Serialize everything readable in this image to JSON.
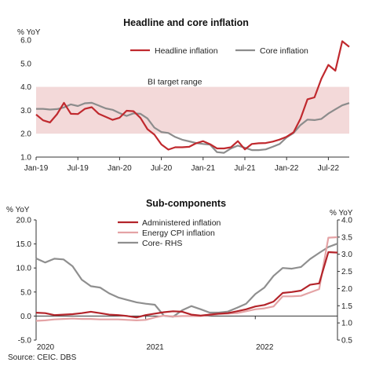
{
  "chart_data": [
    {
      "type": "line",
      "title": "Headline and core inflation",
      "ylabel": "% YoY",
      "ylim": [
        1.0,
        6.0
      ],
      "yticks": [
        "1.0",
        "2.0",
        "3.0",
        "4.0",
        "5.0",
        "6.0"
      ],
      "xlim": [
        0,
        45
      ],
      "xticks": [
        {
          "label": "Jan-19",
          "x": 0
        },
        {
          "label": "Jul-19",
          "x": 6
        },
        {
          "label": "Jan-20",
          "x": 12
        },
        {
          "label": "Jul-20",
          "x": 18
        },
        {
          "label": "Jan-21",
          "x": 24
        },
        {
          "label": "Jul-21",
          "x": 30
        },
        {
          "label": "Jan-22",
          "x": 36
        },
        {
          "label": "Jul-22",
          "x": 42
        }
      ],
      "band": {
        "label": "BI target range",
        "from": 2.0,
        "to": 4.0,
        "color": "#f3d9d9"
      },
      "legend": "top-right",
      "series": [
        {
          "name": "Headline inflation",
          "color": "#c0292e",
          "x": [
            0,
            1,
            2,
            3,
            4,
            5,
            6,
            7,
            8,
            9,
            10,
            11,
            12,
            13,
            14,
            15,
            16,
            17,
            18,
            19,
            20,
            21,
            22,
            23,
            24,
            25,
            26,
            27,
            28,
            29,
            30,
            31,
            32,
            33,
            34,
            35,
            36,
            37,
            38,
            39,
            40,
            41,
            42,
            43,
            44,
            45
          ],
          "values": [
            2.82,
            2.57,
            2.48,
            2.83,
            3.32,
            2.85,
            2.84,
            3.06,
            3.13,
            2.85,
            2.72,
            2.59,
            2.68,
            2.98,
            2.96,
            2.67,
            2.19,
            1.96,
            1.54,
            1.32,
            1.42,
            1.42,
            1.44,
            1.59,
            1.68,
            1.55,
            1.37,
            1.37,
            1.42,
            1.68,
            1.33,
            1.56,
            1.59,
            1.6,
            1.66,
            1.75,
            1.87,
            2.06,
            2.64,
            3.47,
            3.55,
            4.35,
            4.94,
            4.69,
            5.95,
            5.71
          ]
        },
        {
          "name": "Core inflation",
          "color": "#8c8c8c",
          "x": [
            0,
            1,
            2,
            3,
            4,
            5,
            6,
            7,
            8,
            9,
            10,
            11,
            12,
            13,
            14,
            15,
            16,
            17,
            18,
            19,
            20,
            21,
            22,
            23,
            24,
            25,
            26,
            27,
            28,
            29,
            30,
            31,
            32,
            33,
            34,
            35,
            36,
            37,
            38,
            39,
            40,
            41,
            42,
            43,
            44,
            45
          ],
          "values": [
            3.06,
            3.06,
            3.03,
            3.05,
            3.12,
            3.25,
            3.18,
            3.3,
            3.32,
            3.2,
            3.08,
            3.02,
            2.88,
            2.76,
            2.87,
            2.85,
            2.65,
            2.26,
            2.07,
            2.03,
            1.86,
            1.74,
            1.67,
            1.6,
            1.56,
            1.53,
            1.21,
            1.18,
            1.37,
            1.49,
            1.4,
            1.3,
            1.3,
            1.33,
            1.44,
            1.56,
            1.84,
            2.03,
            2.37,
            2.6,
            2.58,
            2.63,
            2.86,
            3.04,
            3.21,
            3.31
          ]
        }
      ]
    },
    {
      "type": "line",
      "title": "Sub-components",
      "ylabel": "% YoY",
      "ylabel_right": "% YoY",
      "ylim": [
        -5.0,
        20.0
      ],
      "ylim_right": [
        0.5,
        4.0
      ],
      "yticks": [
        "-5.0",
        "0.0",
        "5.0",
        "10.0",
        "15.0",
        "20.0"
      ],
      "yticks_right": [
        "0.5",
        "1.0",
        "1.5",
        "2.0",
        "2.5",
        "3.0",
        "3.5",
        "4.0"
      ],
      "xlim": [
        0,
        33
      ],
      "xticks": [
        {
          "label": "2020",
          "x": 0
        },
        {
          "label": "2021",
          "x": 12
        },
        {
          "label": "2022",
          "x": 24
        }
      ],
      "legend": "top-center",
      "series": [
        {
          "name": "Administered inflation",
          "color": "#b3242a",
          "axis": "left",
          "x": [
            0,
            1,
            2,
            3,
            4,
            5,
            6,
            7,
            8,
            9,
            10,
            11,
            12,
            13,
            14,
            15,
            16,
            17,
            18,
            19,
            20,
            21,
            22,
            23,
            24,
            25,
            26,
            27,
            28,
            29,
            30,
            31,
            32,
            33
          ],
          "values": [
            0.7,
            0.6,
            0.2,
            0.3,
            0.4,
            0.6,
            0.9,
            0.6,
            0.3,
            0.2,
            0.0,
            -0.3,
            0.2,
            0.5,
            0.8,
            1.0,
            0.9,
            0.3,
            0.1,
            0.3,
            0.5,
            0.6,
            1.0,
            1.4,
            2.0,
            2.3,
            3.0,
            4.8,
            5.0,
            5.3,
            6.5,
            6.8,
            13.3,
            13.2
          ]
        },
        {
          "name": "Energy CPI inflation",
          "color": "#e4a3a5",
          "axis": "left",
          "x": [
            0,
            1,
            2,
            3,
            4,
            5,
            6,
            7,
            8,
            9,
            10,
            11,
            12,
            13,
            14,
            15,
            16,
            17,
            18,
            19,
            20,
            21,
            22,
            23,
            24,
            25,
            26,
            27,
            28,
            29,
            30,
            31,
            32,
            33
          ],
          "values": [
            -1.0,
            -0.9,
            -0.7,
            -0.6,
            -0.5,
            -0.6,
            -0.6,
            -0.7,
            -0.7,
            -0.7,
            -0.8,
            -0.9,
            -0.8,
            -0.3,
            0.1,
            -0.1,
            0.0,
            0.0,
            0.0,
            0.2,
            0.4,
            0.5,
            0.6,
            1.0,
            1.4,
            1.6,
            2.0,
            4.1,
            4.1,
            4.2,
            4.9,
            5.6,
            16.3,
            16.4
          ]
        },
        {
          "name": "Core- RHS",
          "color": "#8f8f8f",
          "axis": "right",
          "x": [
            0,
            1,
            2,
            3,
            4,
            5,
            6,
            7,
            8,
            9,
            10,
            11,
            12,
            13,
            14,
            15,
            16,
            17,
            18,
            19,
            20,
            21,
            22,
            23,
            24,
            25,
            26,
            27,
            28,
            29,
            30,
            31,
            32,
            33
          ],
          "values": [
            2.88,
            2.76,
            2.87,
            2.85,
            2.65,
            2.26,
            2.07,
            2.03,
            1.86,
            1.74,
            1.67,
            1.6,
            1.56,
            1.53,
            1.21,
            1.18,
            1.37,
            1.49,
            1.4,
            1.3,
            1.3,
            1.33,
            1.44,
            1.56,
            1.84,
            2.03,
            2.37,
            2.6,
            2.58,
            2.63,
            2.86,
            3.04,
            3.21,
            3.31
          ]
        }
      ]
    }
  ],
  "source": "Source: CEIC. DBS"
}
